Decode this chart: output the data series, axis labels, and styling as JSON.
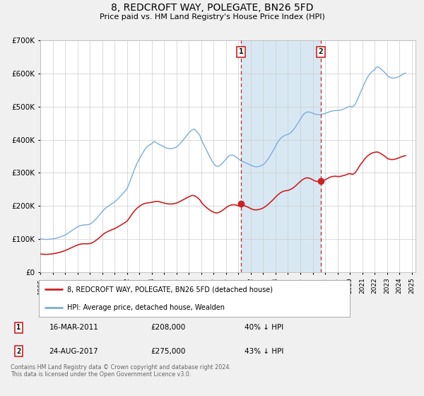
{
  "title": "8, REDCROFT WAY, POLEGATE, BN26 5FD",
  "subtitle": "Price paid vs. HM Land Registry's House Price Index (HPI)",
  "background_color": "#f0f0f0",
  "plot_bg_color": "#ffffff",
  "shaded_region_color": "#d8e8f3",
  "grid_color": "#cccccc",
  "hpi_line_color": "#7aadda",
  "price_line_color": "#cc2222",
  "ylim": [
    0,
    700000
  ],
  "yticks": [
    0,
    100000,
    200000,
    300000,
    400000,
    500000,
    600000,
    700000
  ],
  "xlim_start": 1995.0,
  "xlim_end": 2025.3,
  "xticks": [
    1995,
    1996,
    1997,
    1998,
    1999,
    2000,
    2001,
    2002,
    2003,
    2004,
    2005,
    2006,
    2007,
    2008,
    2009,
    2010,
    2011,
    2012,
    2013,
    2014,
    2015,
    2016,
    2017,
    2018,
    2019,
    2020,
    2021,
    2022,
    2023,
    2024,
    2025
  ],
  "marker1_x": 2011.21,
  "marker1_y": 208000,
  "marker1_label": "1",
  "marker1_date": "16-MAR-2011",
  "marker1_price": "£208,000",
  "marker1_hpi": "40% ↓ HPI",
  "marker2_x": 2017.65,
  "marker2_y": 275000,
  "marker2_label": "2",
  "marker2_date": "24-AUG-2017",
  "marker2_price": "£275,000",
  "marker2_hpi": "43% ↓ HPI",
  "legend_line1": "8, REDCROFT WAY, POLEGATE, BN26 5FD (detached house)",
  "legend_line2": "HPI: Average price, detached house, Wealden",
  "footer_text": "Contains HM Land Registry data © Crown copyright and database right 2024.\nThis data is licensed under the Open Government Licence v3.0.",
  "hpi_data": [
    [
      1995.0,
      101000
    ],
    [
      1995.1,
      100500
    ],
    [
      1995.2,
      100000
    ],
    [
      1995.3,
      99500
    ],
    [
      1995.4,
      99000
    ],
    [
      1995.5,
      99000
    ],
    [
      1995.6,
      99200
    ],
    [
      1995.7,
      99500
    ],
    [
      1995.8,
      99800
    ],
    [
      1995.9,
      100200
    ],
    [
      1996.0,
      100800
    ],
    [
      1996.2,
      102000
    ],
    [
      1996.4,
      104000
    ],
    [
      1996.6,
      106500
    ],
    [
      1996.8,
      109000
    ],
    [
      1997.0,
      112000
    ],
    [
      1997.2,
      117000
    ],
    [
      1997.4,
      122000
    ],
    [
      1997.6,
      127000
    ],
    [
      1997.8,
      132000
    ],
    [
      1998.0,
      137000
    ],
    [
      1998.2,
      140000
    ],
    [
      1998.4,
      142000
    ],
    [
      1998.6,
      143000
    ],
    [
      1998.8,
      143500
    ],
    [
      1999.0,
      145000
    ],
    [
      1999.2,
      150000
    ],
    [
      1999.4,
      157000
    ],
    [
      1999.6,
      165000
    ],
    [
      1999.8,
      174000
    ],
    [
      2000.0,
      183000
    ],
    [
      2000.2,
      191000
    ],
    [
      2000.4,
      197000
    ],
    [
      2000.6,
      202000
    ],
    [
      2000.8,
      207000
    ],
    [
      2001.0,
      212000
    ],
    [
      2001.2,
      219000
    ],
    [
      2001.4,
      227000
    ],
    [
      2001.6,
      235000
    ],
    [
      2001.8,
      243000
    ],
    [
      2002.0,
      252000
    ],
    [
      2002.2,
      270000
    ],
    [
      2002.4,
      290000
    ],
    [
      2002.6,
      310000
    ],
    [
      2002.8,
      328000
    ],
    [
      2003.0,
      342000
    ],
    [
      2003.2,
      355000
    ],
    [
      2003.4,
      368000
    ],
    [
      2003.6,
      378000
    ],
    [
      2003.8,
      384000
    ],
    [
      2004.0,
      388000
    ],
    [
      2004.1,
      392000
    ],
    [
      2004.2,
      395000
    ],
    [
      2004.3,
      393000
    ],
    [
      2004.5,
      388000
    ],
    [
      2004.7,
      384000
    ],
    [
      2004.9,
      381000
    ],
    [
      2005.0,
      378000
    ],
    [
      2005.2,
      375000
    ],
    [
      2005.4,
      373000
    ],
    [
      2005.6,
      373000
    ],
    [
      2005.8,
      375000
    ],
    [
      2006.0,
      378000
    ],
    [
      2006.2,
      385000
    ],
    [
      2006.4,
      393000
    ],
    [
      2006.6,
      402000
    ],
    [
      2006.8,
      411000
    ],
    [
      2007.0,
      421000
    ],
    [
      2007.2,
      428000
    ],
    [
      2007.4,
      432000
    ],
    [
      2007.5,
      430000
    ],
    [
      2007.7,
      422000
    ],
    [
      2007.9,
      412000
    ],
    [
      2008.0,
      400000
    ],
    [
      2008.2,
      385000
    ],
    [
      2008.4,
      370000
    ],
    [
      2008.6,
      355000
    ],
    [
      2008.8,
      340000
    ],
    [
      2009.0,
      328000
    ],
    [
      2009.2,
      320000
    ],
    [
      2009.4,
      320000
    ],
    [
      2009.6,
      325000
    ],
    [
      2009.8,
      333000
    ],
    [
      2010.0,
      342000
    ],
    [
      2010.2,
      350000
    ],
    [
      2010.4,
      354000
    ],
    [
      2010.6,
      353000
    ],
    [
      2010.8,
      348000
    ],
    [
      2011.0,
      342000
    ],
    [
      2011.2,
      337000
    ],
    [
      2011.4,
      333000
    ],
    [
      2011.6,
      330000
    ],
    [
      2011.8,
      327000
    ],
    [
      2012.0,
      323000
    ],
    [
      2012.2,
      320000
    ],
    [
      2012.4,
      318000
    ],
    [
      2012.6,
      319000
    ],
    [
      2012.8,
      321000
    ],
    [
      2013.0,
      325000
    ],
    [
      2013.2,
      332000
    ],
    [
      2013.4,
      342000
    ],
    [
      2013.6,
      354000
    ],
    [
      2013.8,
      367000
    ],
    [
      2014.0,
      381000
    ],
    [
      2014.2,
      394000
    ],
    [
      2014.4,
      404000
    ],
    [
      2014.6,
      410000
    ],
    [
      2014.8,
      414000
    ],
    [
      2015.0,
      416000
    ],
    [
      2015.2,
      420000
    ],
    [
      2015.4,
      428000
    ],
    [
      2015.6,
      438000
    ],
    [
      2015.8,
      450000
    ],
    [
      2016.0,
      462000
    ],
    [
      2016.2,
      474000
    ],
    [
      2016.4,
      481000
    ],
    [
      2016.6,
      484000
    ],
    [
      2016.8,
      483000
    ],
    [
      2017.0,
      480000
    ],
    [
      2017.2,
      477000
    ],
    [
      2017.4,
      476000
    ],
    [
      2017.6,
      476000
    ],
    [
      2017.8,
      477000
    ],
    [
      2018.0,
      479000
    ],
    [
      2018.2,
      482000
    ],
    [
      2018.4,
      485000
    ],
    [
      2018.6,
      487000
    ],
    [
      2018.8,
      488000
    ],
    [
      2019.0,
      488000
    ],
    [
      2019.2,
      489000
    ],
    [
      2019.4,
      491000
    ],
    [
      2019.6,
      494000
    ],
    [
      2019.8,
      498000
    ],
    [
      2020.0,
      501000
    ],
    [
      2020.2,
      499000
    ],
    [
      2020.4,
      505000
    ],
    [
      2020.6,
      520000
    ],
    [
      2020.8,
      538000
    ],
    [
      2021.0,
      555000
    ],
    [
      2021.2,
      572000
    ],
    [
      2021.4,
      587000
    ],
    [
      2021.6,
      598000
    ],
    [
      2021.8,
      606000
    ],
    [
      2022.0,
      611000
    ],
    [
      2022.1,
      617000
    ],
    [
      2022.2,
      620000
    ],
    [
      2022.3,
      619000
    ],
    [
      2022.5,
      614000
    ],
    [
      2022.7,
      607000
    ],
    [
      2022.9,
      600000
    ],
    [
      2023.0,
      594000
    ],
    [
      2023.2,
      589000
    ],
    [
      2023.4,
      586000
    ],
    [
      2023.6,
      586000
    ],
    [
      2023.8,
      588000
    ],
    [
      2024.0,
      591000
    ],
    [
      2024.2,
      596000
    ],
    [
      2024.4,
      600000
    ],
    [
      2024.5,
      601000
    ]
  ],
  "price_data": [
    [
      1995.0,
      55000
    ],
    [
      1995.2,
      54500
    ],
    [
      1995.4,
      54000
    ],
    [
      1995.6,
      54200
    ],
    [
      1995.8,
      54800
    ],
    [
      1996.0,
      55500
    ],
    [
      1996.2,
      56800
    ],
    [
      1996.4,
      58500
    ],
    [
      1996.6,
      60500
    ],
    [
      1996.8,
      62800
    ],
    [
      1997.0,
      65500
    ],
    [
      1997.2,
      68500
    ],
    [
      1997.4,
      72000
    ],
    [
      1997.6,
      75500
    ],
    [
      1997.8,
      79000
    ],
    [
      1998.0,
      82000
    ],
    [
      1998.2,
      84500
    ],
    [
      1998.4,
      85800
    ],
    [
      1998.6,
      86000
    ],
    [
      1998.8,
      85800
    ],
    [
      1999.0,
      86500
    ],
    [
      1999.2,
      89000
    ],
    [
      1999.4,
      93500
    ],
    [
      1999.6,
      99000
    ],
    [
      1999.8,
      105000
    ],
    [
      2000.0,
      112000
    ],
    [
      2000.2,
      118000
    ],
    [
      2000.4,
      122000
    ],
    [
      2000.6,
      125500
    ],
    [
      2000.8,
      128500
    ],
    [
      2001.0,
      131500
    ],
    [
      2001.2,
      135500
    ],
    [
      2001.4,
      140000
    ],
    [
      2001.6,
      144500
    ],
    [
      2001.8,
      149000
    ],
    [
      2002.0,
      154000
    ],
    [
      2002.2,
      164000
    ],
    [
      2002.4,
      175000
    ],
    [
      2002.6,
      185000
    ],
    [
      2002.8,
      193000
    ],
    [
      2003.0,
      199000
    ],
    [
      2003.2,
      204000
    ],
    [
      2003.4,
      207000
    ],
    [
      2003.6,
      209000
    ],
    [
      2003.8,
      210000
    ],
    [
      2004.0,
      211000
    ],
    [
      2004.2,
      213000
    ],
    [
      2004.4,
      214000
    ],
    [
      2004.6,
      213000
    ],
    [
      2004.8,
      211000
    ],
    [
      2005.0,
      209000
    ],
    [
      2005.2,
      207000
    ],
    [
      2005.4,
      206000
    ],
    [
      2005.6,
      206000
    ],
    [
      2005.8,
      207000
    ],
    [
      2006.0,
      209000
    ],
    [
      2006.2,
      212000
    ],
    [
      2006.4,
      216000
    ],
    [
      2006.6,
      220000
    ],
    [
      2006.8,
      224000
    ],
    [
      2007.0,
      228000
    ],
    [
      2007.2,
      231000
    ],
    [
      2007.3,
      232000
    ],
    [
      2007.5,
      230000
    ],
    [
      2007.7,
      225000
    ],
    [
      2007.9,
      218000
    ],
    [
      2008.0,
      211000
    ],
    [
      2008.2,
      203000
    ],
    [
      2008.4,
      196000
    ],
    [
      2008.6,
      190000
    ],
    [
      2008.8,
      185000
    ],
    [
      2009.0,
      181000
    ],
    [
      2009.2,
      179000
    ],
    [
      2009.4,
      180000
    ],
    [
      2009.6,
      184000
    ],
    [
      2009.8,
      189000
    ],
    [
      2010.0,
      195000
    ],
    [
      2010.2,
      200000
    ],
    [
      2010.4,
      203000
    ],
    [
      2010.6,
      204000
    ],
    [
      2010.8,
      203000
    ],
    [
      2011.0,
      200000
    ],
    [
      2011.21,
      208000
    ],
    [
      2011.4,
      203000
    ],
    [
      2011.6,
      199000
    ],
    [
      2011.8,
      196000
    ],
    [
      2012.0,
      192000
    ],
    [
      2012.2,
      189000
    ],
    [
      2012.4,
      188000
    ],
    [
      2012.6,
      189000
    ],
    [
      2012.8,
      191000
    ],
    [
      2013.0,
      194000
    ],
    [
      2013.2,
      199000
    ],
    [
      2013.4,
      205000
    ],
    [
      2013.6,
      212000
    ],
    [
      2013.8,
      219000
    ],
    [
      2014.0,
      227000
    ],
    [
      2014.2,
      234000
    ],
    [
      2014.4,
      240000
    ],
    [
      2014.6,
      244000
    ],
    [
      2014.8,
      246000
    ],
    [
      2015.0,
      247000
    ],
    [
      2015.2,
      250000
    ],
    [
      2015.4,
      254000
    ],
    [
      2015.6,
      260000
    ],
    [
      2015.8,
      267000
    ],
    [
      2016.0,
      274000
    ],
    [
      2016.2,
      280000
    ],
    [
      2016.4,
      284000
    ],
    [
      2016.6,
      285000
    ],
    [
      2016.8,
      283000
    ],
    [
      2017.0,
      279000
    ],
    [
      2017.2,
      275000
    ],
    [
      2017.4,
      274000
    ],
    [
      2017.65,
      275000
    ],
    [
      2017.8,
      276000
    ],
    [
      2018.0,
      279000
    ],
    [
      2018.2,
      283000
    ],
    [
      2018.4,
      287000
    ],
    [
      2018.6,
      289000
    ],
    [
      2018.8,
      290000
    ],
    [
      2019.0,
      289000
    ],
    [
      2019.2,
      289000
    ],
    [
      2019.4,
      291000
    ],
    [
      2019.6,
      293000
    ],
    [
      2019.8,
      296000
    ],
    [
      2020.0,
      298000
    ],
    [
      2020.2,
      295000
    ],
    [
      2020.4,
      299000
    ],
    [
      2020.6,
      310000
    ],
    [
      2020.8,
      322000
    ],
    [
      2021.0,
      332000
    ],
    [
      2021.2,
      342000
    ],
    [
      2021.4,
      350000
    ],
    [
      2021.6,
      356000
    ],
    [
      2021.8,
      360000
    ],
    [
      2022.0,
      362000
    ],
    [
      2022.2,
      363000
    ],
    [
      2022.3,
      362000
    ],
    [
      2022.5,
      358000
    ],
    [
      2022.7,
      353000
    ],
    [
      2022.9,
      348000
    ],
    [
      2023.0,
      344000
    ],
    [
      2023.2,
      341000
    ],
    [
      2023.4,
      340000
    ],
    [
      2023.6,
      341000
    ],
    [
      2023.8,
      343000
    ],
    [
      2024.0,
      346000
    ],
    [
      2024.2,
      349000
    ],
    [
      2024.4,
      351000
    ],
    [
      2024.5,
      352000
    ]
  ]
}
